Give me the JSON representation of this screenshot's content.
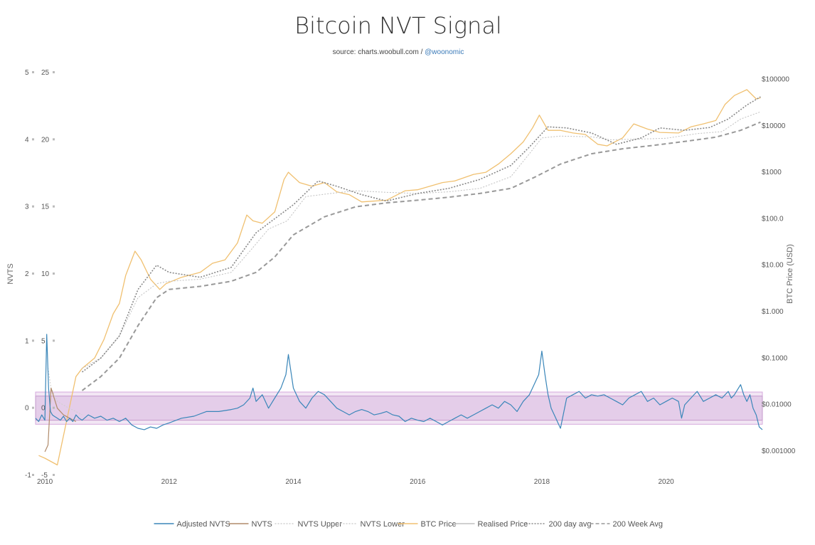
{
  "chart_data": {
    "type": "line",
    "title": "Bitcoin NVT Signal",
    "subtitle_prefix": "source: charts.woobull.com / ",
    "subtitle_link": "@woonomic",
    "left_axis_title": "NVTS",
    "right_axis_title": "BTC Price (USD)",
    "x_ticks": [
      "2010",
      "2012",
      "2014",
      "2016",
      "2018",
      "2020"
    ],
    "xlim": [
      2009.85,
      2021.55
    ],
    "inner_left_ticks": [
      "25",
      "20",
      "15",
      "10",
      "5",
      "0",
      "-5"
    ],
    "inner_left_values": [
      25,
      20,
      15,
      10,
      5,
      0,
      -5
    ],
    "outer_left_ticks": [
      "5",
      "4",
      "3",
      "2",
      "1",
      "0",
      "-1"
    ],
    "outer_left_values": [
      5,
      4,
      3,
      2,
      1,
      0,
      -1
    ],
    "adjusted_ylim": [
      -1,
      5
    ],
    "right_ticks": [
      "$100000",
      "$10000",
      "$1000",
      "$100.0",
      "$10.00",
      "$1.000",
      "$0.1000",
      "$0.01000",
      "$0.001000"
    ],
    "right_values": [
      100000,
      10000,
      1000,
      100,
      10,
      1,
      0.1,
      0.01,
      0.001
    ],
    "price_log_ylim": [
      0.0003,
      140000
    ],
    "bands": {
      "outer": [
        -0.24,
        0.24
      ],
      "inner": [
        -0.18,
        0.18
      ],
      "color": "#d9b8e0"
    },
    "colors": {
      "adjusted_nvts": "#3a86b9",
      "nvts": "#b08a6a",
      "nvts_upper": "#cfcfcf",
      "nvts_lower": "#cfcfcf",
      "btc_price": "#f0c070",
      "realised_price": "#c0c0c0",
      "avg_200d": "#888888",
      "avg_200w": "#999999",
      "link": "#3a7ab8"
    },
    "legend_position": "bottom-center",
    "legend": [
      "Adjusted NVTS",
      "NVTS",
      "NVTS Upper",
      "NVTS Lower",
      "BTC Price",
      "Realised Price",
      "200 day avg",
      "200 Week Avg"
    ],
    "series": [
      {
        "name": "BTC Price",
        "x": [
          2009.9,
          2010.0,
          2010.2,
          2010.5,
          2010.6,
          2010.8,
          2010.95,
          2011.1,
          2011.2,
          2011.3,
          2011.45,
          2011.55,
          2011.7,
          2011.85,
          2011.95,
          2012.2,
          2012.5,
          2012.7,
          2012.9,
          2013.1,
          2013.25,
          2013.35,
          2013.5,
          2013.7,
          2013.85,
          2013.92,
          2014.1,
          2014.3,
          2014.5,
          2014.7,
          2014.9,
          2015.1,
          2015.5,
          2015.8,
          2016.0,
          2016.4,
          2016.6,
          2016.9,
          2017.1,
          2017.3,
          2017.5,
          2017.7,
          2017.85,
          2017.96,
          2018.1,
          2018.3,
          2018.5,
          2018.7,
          2018.9,
          2019.05,
          2019.3,
          2019.48,
          2019.7,
          2019.9,
          2020.2,
          2020.4,
          2020.6,
          2020.8,
          2020.95,
          2021.1,
          2021.3,
          2021.45,
          2021.52
        ],
        "values": [
          0.0008,
          0.0007,
          0.0005,
          0.04,
          0.06,
          0.1,
          0.25,
          0.9,
          1.5,
          6,
          20,
          13,
          5,
          3,
          4,
          5.5,
          7,
          11,
          13,
          30,
          120,
          90,
          80,
          140,
          700,
          1000,
          600,
          500,
          600,
          380,
          330,
          230,
          250,
          400,
          420,
          600,
          650,
          900,
          1000,
          1500,
          2500,
          4500,
          9000,
          17000,
          8000,
          8000,
          7000,
          6500,
          4000,
          3700,
          5500,
          11000,
          8500,
          7200,
          7000,
          9500,
          11000,
          13000,
          29000,
          45000,
          60000,
          38000,
          40000
        ]
      },
      {
        "name": "Realised Price",
        "x": [
          2010.6,
          2010.9,
          2011.2,
          2011.5,
          2011.8,
          2012.0,
          2012.5,
          2013.0,
          2013.3,
          2013.6,
          2013.9,
          2014.2,
          2014.6,
          2015.0,
          2015.5,
          2016.0,
          2016.5,
          2017.0,
          2017.5,
          2017.8,
          2018.0,
          2018.3,
          2018.8,
          2019.1,
          2019.6,
          2020.0,
          2020.5,
          2020.9,
          2021.2,
          2021.52
        ],
        "values": [
          0.06,
          0.1,
          0.3,
          2,
          4,
          4.5,
          5,
          7,
          20,
          60,
          90,
          300,
          350,
          400,
          370,
          350,
          380,
          450,
          800,
          2500,
          5500,
          6000,
          5800,
          5000,
          5200,
          5400,
          6800,
          7500,
          14000,
          20000
        ]
      },
      {
        "name": "200 day avg",
        "x": [
          2010.6,
          2010.9,
          2011.2,
          2011.5,
          2011.8,
          2012.0,
          2012.5,
          2013.0,
          2013.4,
          2013.7,
          2014.0,
          2014.4,
          2014.7,
          2015.1,
          2015.5,
          2016.0,
          2016.5,
          2017.0,
          2017.5,
          2017.8,
          2018.1,
          2018.4,
          2018.8,
          2019.2,
          2019.6,
          2019.9,
          2020.3,
          2020.7,
          2021.0,
          2021.3,
          2021.52
        ],
        "values": [
          0.05,
          0.1,
          0.3,
          3,
          10,
          7,
          5.5,
          9,
          50,
          100,
          200,
          650,
          500,
          330,
          240,
          350,
          450,
          700,
          1400,
          3500,
          9500,
          9000,
          7000,
          4000,
          5500,
          9000,
          8000,
          9200,
          14000,
          28000,
          42000
        ]
      },
      {
        "name": "200 Week Avg",
        "x": [
          2010.6,
          2010.9,
          2011.2,
          2011.5,
          2011.8,
          2012.0,
          2012.5,
          2013.0,
          2013.4,
          2013.7,
          2014.0,
          2014.5,
          2015.0,
          2015.5,
          2016.0,
          2016.5,
          2017.0,
          2017.5,
          2017.9,
          2018.3,
          2018.8,
          2019.3,
          2019.8,
          2020.3,
          2020.8,
          2021.2,
          2021.52
        ],
        "values": [
          0.02,
          0.04,
          0.1,
          0.5,
          2,
          3,
          3.5,
          4.5,
          7,
          15,
          45,
          110,
          180,
          220,
          250,
          290,
          350,
          450,
          800,
          1500,
          2500,
          3200,
          3800,
          4600,
          5700,
          8000,
          12000
        ]
      },
      {
        "name": "NVTS Upper",
        "x": [
          2010.05,
          2010.1,
          2010.2,
          2010.35,
          2010.5,
          2010.6
        ],
        "values": [
          0.6,
          0.3,
          0.1,
          0.02,
          -0.05,
          -0.1
        ]
      },
      {
        "name": "NVTS",
        "x": [
          2010.0,
          2010.05,
          2010.1,
          2010.2,
          2010.3,
          2010.4,
          2010.5
        ],
        "values": [
          -0.65,
          -0.55,
          0.3,
          0.0,
          -0.1,
          -0.15,
          -0.2
        ]
      },
      {
        "name": "Adjusted NVTS",
        "x": [
          2009.85,
          2009.9,
          2009.95,
          2010.0,
          2010.03,
          2010.06,
          2010.09,
          2010.12,
          2010.15,
          2010.2,
          2010.25,
          2010.3,
          2010.35,
          2010.4,
          2010.45,
          2010.5,
          2010.55,
          2010.6,
          2010.7,
          2010.8,
          2010.9,
          2011.0,
          2011.1,
          2011.2,
          2011.3,
          2011.4,
          2011.5,
          2011.6,
          2011.7,
          2011.8,
          2011.9,
          2012.0,
          2012.2,
          2012.4,
          2012.6,
          2012.8,
          2013.0,
          2013.1,
          2013.2,
          2013.3,
          2013.35,
          2013.4,
          2013.5,
          2013.6,
          2013.7,
          2013.8,
          2013.88,
          2013.92,
          2014.0,
          2014.1,
          2014.2,
          2014.3,
          2014.4,
          2014.5,
          2014.6,
          2014.7,
          2014.8,
          2014.9,
          2015.0,
          2015.1,
          2015.2,
          2015.3,
          2015.4,
          2015.5,
          2015.6,
          2015.7,
          2015.8,
          2015.9,
          2016.0,
          2016.1,
          2016.2,
          2016.3,
          2016.4,
          2016.5,
          2016.6,
          2016.7,
          2016.8,
          2016.9,
          2017.0,
          2017.1,
          2017.2,
          2017.3,
          2017.4,
          2017.5,
          2017.6,
          2017.7,
          2017.8,
          2017.85,
          2017.9,
          2017.95,
          2018.0,
          2018.05,
          2018.1,
          2018.15,
          2018.2,
          2018.3,
          2018.4,
          2018.5,
          2018.6,
          2018.7,
          2018.8,
          2018.9,
          2019.0,
          2019.1,
          2019.2,
          2019.3,
          2019.4,
          2019.5,
          2019.6,
          2019.7,
          2019.8,
          2019.9,
          2020.0,
          2020.1,
          2020.2,
          2020.25,
          2020.3,
          2020.4,
          2020.5,
          2020.6,
          2020.7,
          2020.8,
          2020.9,
          2021.0,
          2021.05,
          2021.1,
          2021.2,
          2021.25,
          2021.3,
          2021.35,
          2021.4,
          2021.45,
          2021.5,
          2021.55
        ],
        "values": [
          -0.15,
          -0.2,
          -0.1,
          -0.18,
          1.1,
          0.3,
          -0.05,
          -0.1,
          -0.12,
          -0.15,
          -0.18,
          -0.12,
          -0.2,
          -0.15,
          -0.2,
          -0.1,
          -0.15,
          -0.18,
          -0.1,
          -0.15,
          -0.12,
          -0.18,
          -0.15,
          -0.2,
          -0.15,
          -0.25,
          -0.3,
          -0.32,
          -0.28,
          -0.3,
          -0.25,
          -0.22,
          -0.15,
          -0.12,
          -0.05,
          -0.05,
          -0.02,
          0.0,
          0.05,
          0.15,
          0.3,
          0.1,
          0.2,
          0.0,
          0.15,
          0.3,
          0.5,
          0.8,
          0.3,
          0.1,
          0.0,
          0.15,
          0.25,
          0.2,
          0.1,
          0.0,
          -0.05,
          -0.1,
          -0.05,
          -0.02,
          -0.05,
          -0.1,
          -0.08,
          -0.05,
          -0.1,
          -0.12,
          -0.2,
          -0.15,
          -0.18,
          -0.2,
          -0.15,
          -0.2,
          -0.25,
          -0.2,
          -0.15,
          -0.1,
          -0.15,
          -0.1,
          -0.05,
          0.0,
          0.05,
          0.0,
          0.1,
          0.05,
          -0.05,
          0.1,
          0.2,
          0.3,
          0.4,
          0.5,
          0.85,
          0.5,
          0.2,
          0.0,
          -0.1,
          -0.3,
          0.15,
          0.2,
          0.25,
          0.15,
          0.2,
          0.18,
          0.2,
          0.15,
          0.1,
          0.05,
          0.15,
          0.2,
          0.25,
          0.1,
          0.15,
          0.05,
          0.1,
          0.15,
          0.1,
          -0.15,
          0.05,
          0.15,
          0.25,
          0.1,
          0.15,
          0.2,
          0.15,
          0.25,
          0.15,
          0.2,
          0.35,
          0.2,
          0.1,
          0.2,
          0.0,
          -0.1,
          -0.28,
          -0.32
        ]
      }
    ]
  }
}
